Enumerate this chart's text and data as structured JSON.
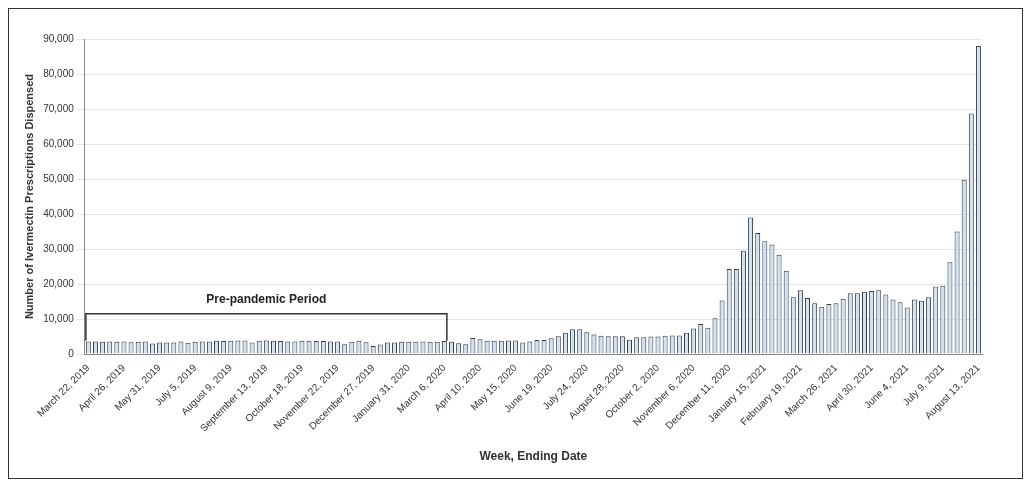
{
  "chart_data": {
    "type": "bar",
    "xlabel": "Week, Ending Date",
    "ylabel": "Number of Ivermectin Prescriptions Dispensed",
    "categories": [
      "March 22, 2019",
      null,
      null,
      null,
      null,
      "April 26, 2019",
      null,
      null,
      null,
      null,
      "May 31, 2019",
      null,
      null,
      null,
      null,
      "July 5, 2019",
      null,
      null,
      null,
      null,
      "August 9, 2019",
      null,
      null,
      null,
      null,
      "September 13, 2019",
      null,
      null,
      null,
      null,
      "October 18, 2019",
      null,
      null,
      null,
      null,
      "November 22, 2019",
      null,
      null,
      null,
      null,
      "December 27, 2019",
      null,
      null,
      null,
      null,
      "January 31, 2020",
      null,
      null,
      null,
      null,
      "March 6, 2020",
      null,
      null,
      null,
      null,
      "April 10, 2020",
      null,
      null,
      null,
      null,
      "May 15, 2020",
      null,
      null,
      null,
      null,
      "June 19, 2020",
      null,
      null,
      null,
      null,
      "July 24, 2020",
      null,
      null,
      null,
      null,
      "August 28, 2020",
      null,
      null,
      null,
      null,
      "October 2, 2020",
      null,
      null,
      null,
      null,
      "November 6, 2020",
      null,
      null,
      null,
      null,
      "December 11, 2020",
      null,
      null,
      null,
      null,
      "January 15, 2021",
      null,
      null,
      null,
      null,
      "February 19, 2021",
      null,
      null,
      null,
      null,
      "March 26, 2021",
      null,
      null,
      null,
      null,
      "April 30, 2021",
      null,
      null,
      null,
      null,
      "June 4, 2021",
      null,
      null,
      null,
      null,
      "July 9, 2021",
      null,
      null,
      null,
      null,
      "August 13, 2021"
    ],
    "values": [
      3600,
      3600,
      3500,
      3600,
      3500,
      3600,
      3400,
      3500,
      3600,
      3000,
      3300,
      3300,
      3300,
      3600,
      3200,
      3500,
      3600,
      3600,
      3800,
      3700,
      3800,
      3900,
      3900,
      3300,
      3800,
      3900,
      3800,
      3700,
      3600,
      3600,
      3800,
      3800,
      3700,
      3700,
      3600,
      3600,
      2800,
      3500,
      3800,
      3400,
      2300,
      2700,
      3300,
      3300,
      3500,
      3500,
      3500,
      3600,
      3500,
      3500,
      3700,
      3500,
      3100,
      2800,
      4600,
      4200,
      3800,
      3800,
      3800,
      3900,
      3900,
      3300,
      3600,
      4000,
      4000,
      4500,
      5100,
      6100,
      7100,
      7100,
      6200,
      5600,
      5200,
      5100,
      5100,
      5100,
      4100,
      4800,
      4800,
      5000,
      5000,
      5200,
      5300,
      5300,
      6100,
      7300,
      8600,
      7500,
      10200,
      15300,
      24300,
      24300,
      29500,
      39000,
      34600,
      32200,
      31300,
      28400,
      23800,
      16200,
      18200,
      16000,
      14500,
      13500,
      14300,
      14500,
      15800,
      17400,
      17400,
      17800,
      18000,
      18200,
      17000,
      15600,
      14800,
      13300,
      15600,
      15200,
      16200,
      19300,
      19500,
      26200,
      35000,
      49800,
      68700,
      88000
    ],
    "color": "#cfe2f8",
    "ylim": [
      0,
      90000
    ],
    "yticks": [
      {
        "value": 0,
        "label": "0"
      },
      {
        "value": 10000,
        "label": "10,000"
      },
      {
        "value": 20000,
        "label": "20,000"
      },
      {
        "value": 30000,
        "label": "30,000"
      },
      {
        "value": 40000,
        "label": "40,000"
      },
      {
        "value": 50000,
        "label": "50,000"
      },
      {
        "value": 60000,
        "label": "60,000"
      },
      {
        "value": 70000,
        "label": "70,000"
      },
      {
        "value": 80000,
        "label": "80,000"
      },
      {
        "value": 90000,
        "label": "90,000"
      }
    ],
    "grid": "y",
    "annotations": [
      "Pre-pandemic Period"
    ]
  }
}
